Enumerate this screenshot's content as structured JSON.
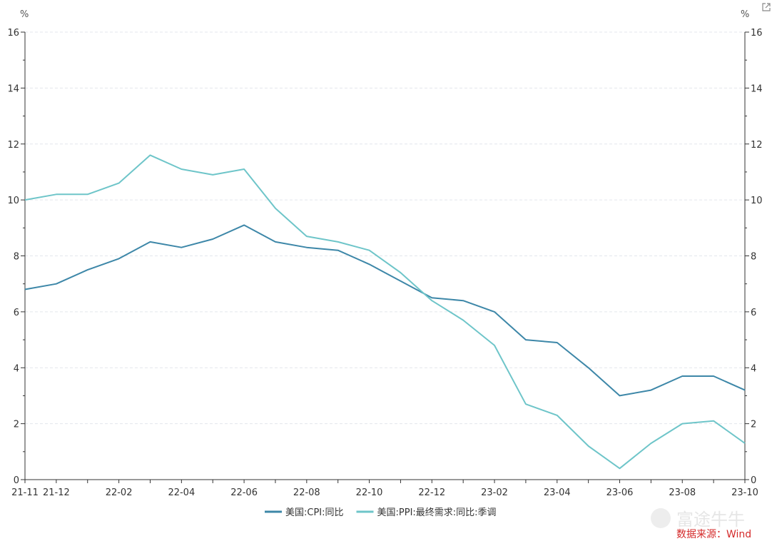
{
  "chart_data": {
    "type": "line",
    "y_unit_left": "%",
    "y_unit_right": "%",
    "ylim": [
      0,
      16
    ],
    "y_ticks": [
      0,
      2,
      4,
      6,
      8,
      10,
      12,
      14,
      16
    ],
    "x": [
      "21-11",
      "21-12",
      "22-01",
      "22-02",
      "22-03",
      "22-04",
      "22-05",
      "22-06",
      "22-07",
      "22-08",
      "22-09",
      "22-10",
      "22-11",
      "22-12",
      "23-01",
      "23-02",
      "23-03",
      "23-04",
      "23-05",
      "23-06",
      "23-07",
      "23-08",
      "23-09",
      "23-10"
    ],
    "x_tick_labels": [
      "21-11",
      "21-12",
      "22-02",
      "22-04",
      "22-06",
      "22-08",
      "22-10",
      "22-12",
      "23-02",
      "23-04",
      "23-06",
      "23-08",
      "23-10"
    ],
    "series": [
      {
        "name": "美国:CPI:同比",
        "color": "#3d87a8",
        "values": [
          6.8,
          7.0,
          7.5,
          7.9,
          8.5,
          8.3,
          8.6,
          9.1,
          8.5,
          8.3,
          8.2,
          7.7,
          7.1,
          6.5,
          6.4,
          6.0,
          5.0,
          4.9,
          4.0,
          3.0,
          3.2,
          3.7,
          3.7,
          3.2
        ]
      },
      {
        "name": "美国:PPI:最终需求:同比:季调",
        "color": "#6ec5c9",
        "values": [
          10.0,
          10.2,
          10.2,
          10.6,
          11.6,
          11.1,
          10.9,
          11.1,
          9.7,
          8.7,
          8.5,
          8.2,
          7.4,
          6.4,
          5.7,
          4.8,
          2.7,
          2.3,
          1.2,
          0.4,
          1.3,
          2.0,
          2.1,
          1.3
        ]
      }
    ],
    "grid": true,
    "legend": "bottom-center"
  },
  "source_text": "数据来源：Wind",
  "watermark_text": "富途牛牛",
  "expand_icon": "external-link-icon"
}
